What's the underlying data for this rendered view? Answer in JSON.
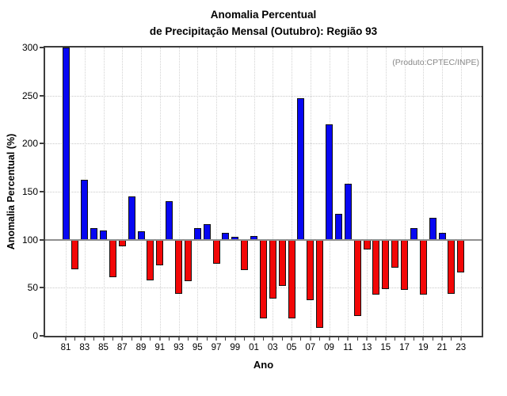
{
  "title": {
    "line1": "Anomalia Percentual",
    "line2": "de Precipitação Mensal (Outubro): Região 93"
  },
  "annotation": {
    "text": "(Produto:CPTEC/INPE)",
    "color": "#878787"
  },
  "chart_data": {
    "type": "bar",
    "title": "Anomalia Percentual de Precipitação Mensal (Outubro): Região 93",
    "xlabel": "Ano",
    "ylabel": "Anomalia Percentual (%)",
    "ylim": [
      0,
      300
    ],
    "yticks": [
      0,
      50,
      100,
      150,
      200,
      250,
      300
    ],
    "grid_y_values": [
      50,
      150,
      200,
      250
    ],
    "baseline": 100,
    "grid": true,
    "legend_position": "none",
    "x_tick_labels": [
      "81",
      "83",
      "85",
      "87",
      "89",
      "91",
      "93",
      "95",
      "97",
      "99",
      "01",
      "03",
      "05",
      "07",
      "09",
      "11",
      "13",
      "15",
      "17",
      "19",
      "21",
      "23"
    ],
    "years": [
      1981,
      1982,
      1983,
      1984,
      1985,
      1986,
      1987,
      1988,
      1989,
      1990,
      1991,
      1992,
      1993,
      1994,
      1995,
      1996,
      1997,
      1998,
      1999,
      2000,
      2001,
      2002,
      2003,
      2004,
      2005,
      2006,
      2007,
      2008,
      2009,
      2010,
      2011,
      2012,
      2013,
      2014,
      2015,
      2016,
      2017,
      2018,
      2019,
      2020,
      2021,
      2022,
      2023
    ],
    "values": [
      300,
      69,
      162,
      112,
      110,
      61,
      93,
      145,
      109,
      58,
      73,
      140,
      44,
      57,
      112,
      116,
      75,
      107,
      103,
      68,
      104,
      18,
      39,
      52,
      18,
      247,
      37,
      8,
      220,
      127,
      158,
      21,
      90,
      43,
      49,
      71,
      48,
      112,
      43,
      123,
      107,
      44,
      66
    ],
    "colors": {
      "above_baseline": "#0707f2",
      "below_baseline": "#f20707",
      "bar_border": "#111111",
      "baseline_line": "#8f8f8f",
      "grid_line": "#c9c9c9"
    }
  }
}
